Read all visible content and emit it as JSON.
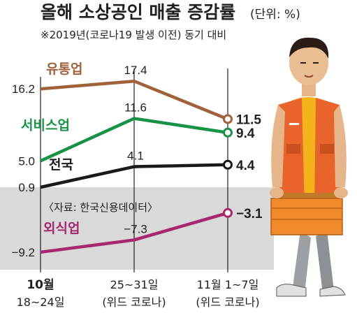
{
  "colors": {
    "retail": "#a0623a",
    "service": "#179247",
    "national": "#1a1a1a",
    "dining": "#a8286f",
    "negative_band": "#d9d9d9",
    "vest": "#e8642c",
    "shirt": "#f4b31a"
  },
  "chart_data": {
    "type": "line",
    "title": "올해 소상공인 매출 증감률",
    "unit": "(단위: %)",
    "subtitle": "※2019년(코로나19 발생 이전) 동기 대비",
    "source": "〈자료: 한국신용데이터〉",
    "x": [
      {
        "line1": "10월",
        "line2": "18~24일"
      },
      {
        "line1": "25~31일",
        "line2": "(위드 코로나)"
      },
      {
        "line1": "11월 1~7일",
        "line2": "(위드 코로나)"
      }
    ],
    "ylim": [
      -9.2,
      17.4
    ],
    "series": [
      {
        "key": "retail",
        "name": "유통업",
        "values": [
          16.2,
          17.4,
          11.5
        ],
        "labels": [
          "16.2",
          "17.4",
          "11.5"
        ]
      },
      {
        "key": "service",
        "name": "서비스업",
        "values": [
          5.0,
          11.6,
          9.4
        ],
        "labels": [
          "5.0",
          "11.6",
          "9.4"
        ]
      },
      {
        "key": "national",
        "name": "전국",
        "values": [
          0.9,
          4.1,
          4.4
        ],
        "labels": [
          "0.9",
          "4.1",
          "4.4"
        ]
      },
      {
        "key": "dining",
        "name": "외식업",
        "values": [
          -9.2,
          -7.3,
          -3.1
        ],
        "labels": [
          "−9.2",
          "−7.3",
          "−3.1"
        ]
      }
    ]
  }
}
